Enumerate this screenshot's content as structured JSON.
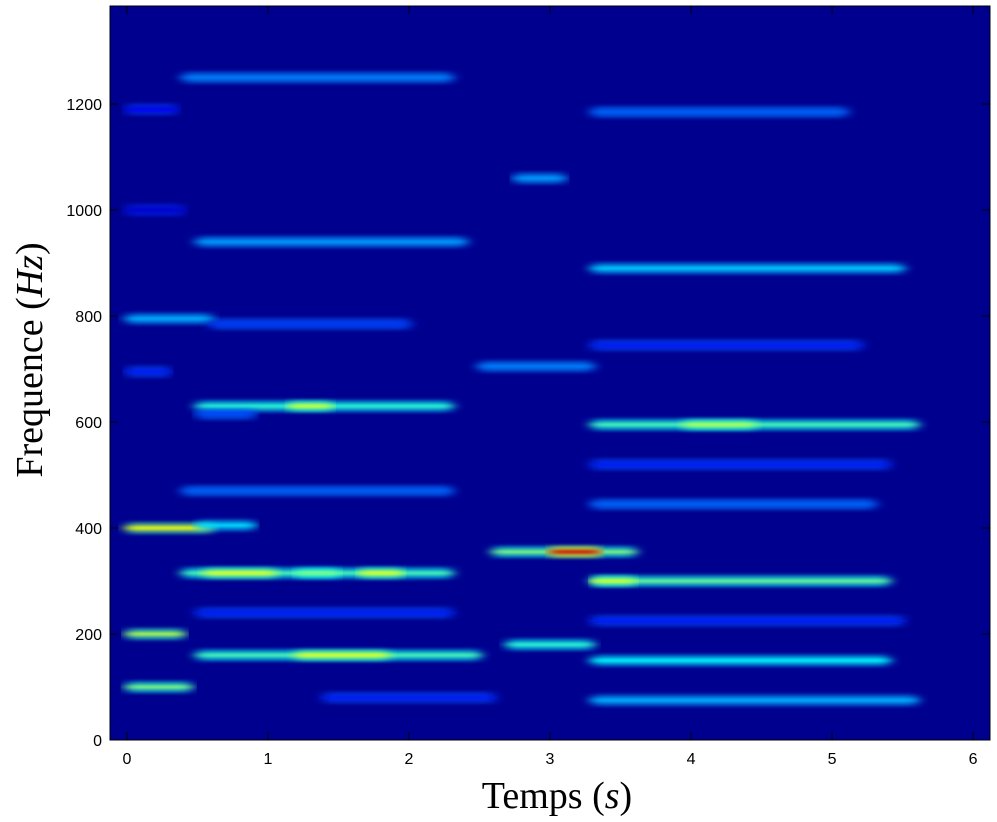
{
  "chart_data": {
    "type": "heatmap",
    "title": "",
    "xlabel_text": "Temps",
    "xlabel_var": "s",
    "ylabel_text": "Frequence",
    "ylabel_var": "Hz",
    "xlim": [
      -0.12,
      6.12
    ],
    "ylim": [
      0,
      1385
    ],
    "x_ticks": [
      0,
      1,
      2,
      3,
      4,
      5,
      6
    ],
    "y_ticks": [
      0,
      200,
      400,
      600,
      800,
      1000,
      1200
    ],
    "colormap": "jet",
    "background_color": "#00008f",
    "grid": false,
    "bands": [
      {
        "freq": 100,
        "t_start": 0.0,
        "t_end": 0.45,
        "intensity": 0.5
      },
      {
        "freq": 200,
        "t_start": 0.0,
        "t_end": 0.4,
        "intensity": 0.55
      },
      {
        "freq": 400,
        "t_start": 0.0,
        "t_end": 0.6,
        "intensity": 0.62
      },
      {
        "freq": 405,
        "t_start": 0.5,
        "t_end": 0.9,
        "intensity": 0.35
      },
      {
        "freq": 795,
        "t_start": 0.0,
        "t_end": 0.6,
        "intensity": 0.3
      },
      {
        "freq": 695,
        "t_start": 0.0,
        "t_end": 0.3,
        "intensity": 0.15
      },
      {
        "freq": 1190,
        "t_start": 0.0,
        "t_end": 0.35,
        "intensity": 0.12
      },
      {
        "freq": 1000,
        "t_start": 0.0,
        "t_end": 0.4,
        "intensity": 0.08
      },
      {
        "freq": 1250,
        "t_start": 0.4,
        "t_end": 2.3,
        "intensity": 0.25
      },
      {
        "freq": 940,
        "t_start": 0.5,
        "t_end": 2.4,
        "intensity": 0.28
      },
      {
        "freq": 785,
        "t_start": 0.6,
        "t_end": 2.0,
        "intensity": 0.18
      },
      {
        "freq": 630,
        "t_start": 0.5,
        "t_end": 2.3,
        "intensity": 0.42
      },
      {
        "freq": 630,
        "t_start": 1.15,
        "t_end": 1.45,
        "intensity": 0.58
      },
      {
        "freq": 615,
        "t_start": 0.5,
        "t_end": 0.9,
        "intensity": 0.2
      },
      {
        "freq": 470,
        "t_start": 0.4,
        "t_end": 2.3,
        "intensity": 0.22
      },
      {
        "freq": 315,
        "t_start": 0.4,
        "t_end": 2.3,
        "intensity": 0.45
      },
      {
        "freq": 315,
        "t_start": 0.55,
        "t_end": 1.05,
        "intensity": 0.6
      },
      {
        "freq": 315,
        "t_start": 1.2,
        "t_end": 1.5,
        "intensity": 0.5
      },
      {
        "freq": 315,
        "t_start": 1.65,
        "t_end": 1.95,
        "intensity": 0.6
      },
      {
        "freq": 240,
        "t_start": 0.5,
        "t_end": 2.3,
        "intensity": 0.15
      },
      {
        "freq": 160,
        "t_start": 0.5,
        "t_end": 2.5,
        "intensity": 0.45
      },
      {
        "freq": 160,
        "t_start": 1.2,
        "t_end": 1.85,
        "intensity": 0.6
      },
      {
        "freq": 80,
        "t_start": 1.4,
        "t_end": 2.6,
        "intensity": 0.15
      },
      {
        "freq": 1060,
        "t_start": 2.75,
        "t_end": 3.1,
        "intensity": 0.28
      },
      {
        "freq": 1185,
        "t_start": 3.3,
        "t_end": 5.1,
        "intensity": 0.22
      },
      {
        "freq": 890,
        "t_start": 3.3,
        "t_end": 5.5,
        "intensity": 0.33
      },
      {
        "freq": 705,
        "t_start": 2.5,
        "t_end": 3.3,
        "intensity": 0.25
      },
      {
        "freq": 745,
        "t_start": 3.3,
        "t_end": 5.2,
        "intensity": 0.15
      },
      {
        "freq": 595,
        "t_start": 3.3,
        "t_end": 5.6,
        "intensity": 0.45
      },
      {
        "freq": 595,
        "t_start": 3.95,
        "t_end": 4.45,
        "intensity": 0.55
      },
      {
        "freq": 520,
        "t_start": 3.3,
        "t_end": 5.4,
        "intensity": 0.15
      },
      {
        "freq": 445,
        "t_start": 3.3,
        "t_end": 5.3,
        "intensity": 0.22
      },
      {
        "freq": 355,
        "t_start": 2.6,
        "t_end": 3.6,
        "intensity": 0.5
      },
      {
        "freq": 355,
        "t_start": 3.0,
        "t_end": 3.35,
        "intensity": 0.92
      },
      {
        "freq": 300,
        "t_start": 3.3,
        "t_end": 5.4,
        "intensity": 0.48
      },
      {
        "freq": 300,
        "t_start": 3.3,
        "t_end": 3.6,
        "intensity": 0.58
      },
      {
        "freq": 225,
        "t_start": 3.3,
        "t_end": 5.5,
        "intensity": 0.15
      },
      {
        "freq": 180,
        "t_start": 2.7,
        "t_end": 3.3,
        "intensity": 0.42
      },
      {
        "freq": 150,
        "t_start": 3.3,
        "t_end": 5.4,
        "intensity": 0.38
      },
      {
        "freq": 75,
        "t_start": 3.3,
        "t_end": 5.6,
        "intensity": 0.3
      }
    ]
  }
}
